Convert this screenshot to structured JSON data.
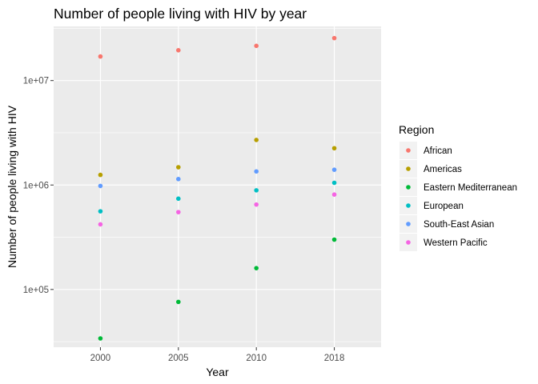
{
  "chart_data": {
    "type": "scatter",
    "title": "Number of people living with HIV by year",
    "xlabel": "Year",
    "ylabel": "Number of people living with HIV",
    "x_scale": "discrete",
    "y_scale": "log10",
    "categories": [
      "2000",
      "2005",
      "2010",
      "2018"
    ],
    "ylim": [
      28000,
      33000000
    ],
    "y_ticks": [
      100000,
      1000000,
      10000000
    ],
    "y_tick_labels": [
      "1e+05",
      "1e+06",
      "1e+07"
    ],
    "grid": true,
    "legend": {
      "title": "Region",
      "position": "right"
    },
    "series": [
      {
        "name": "African",
        "color": "#F8766D",
        "values": [
          17000000,
          19500000,
          21500000,
          25500000
        ]
      },
      {
        "name": "Americas",
        "color": "#B79F00",
        "values": [
          1250000,
          1480000,
          2700000,
          2250000
        ]
      },
      {
        "name": "Eastern Mediterranean",
        "color": "#00BA38",
        "values": [
          34000,
          76000,
          160000,
          300000
        ]
      },
      {
        "name": "European",
        "color": "#00BFC4",
        "values": [
          560000,
          740000,
          890000,
          1050000
        ]
      },
      {
        "name": "South-East Asian",
        "color": "#619CFF",
        "values": [
          980000,
          1140000,
          1350000,
          1400000
        ]
      },
      {
        "name": "Western Pacific",
        "color": "#F564E3",
        "values": [
          420000,
          550000,
          650000,
          810000
        ]
      }
    ]
  }
}
